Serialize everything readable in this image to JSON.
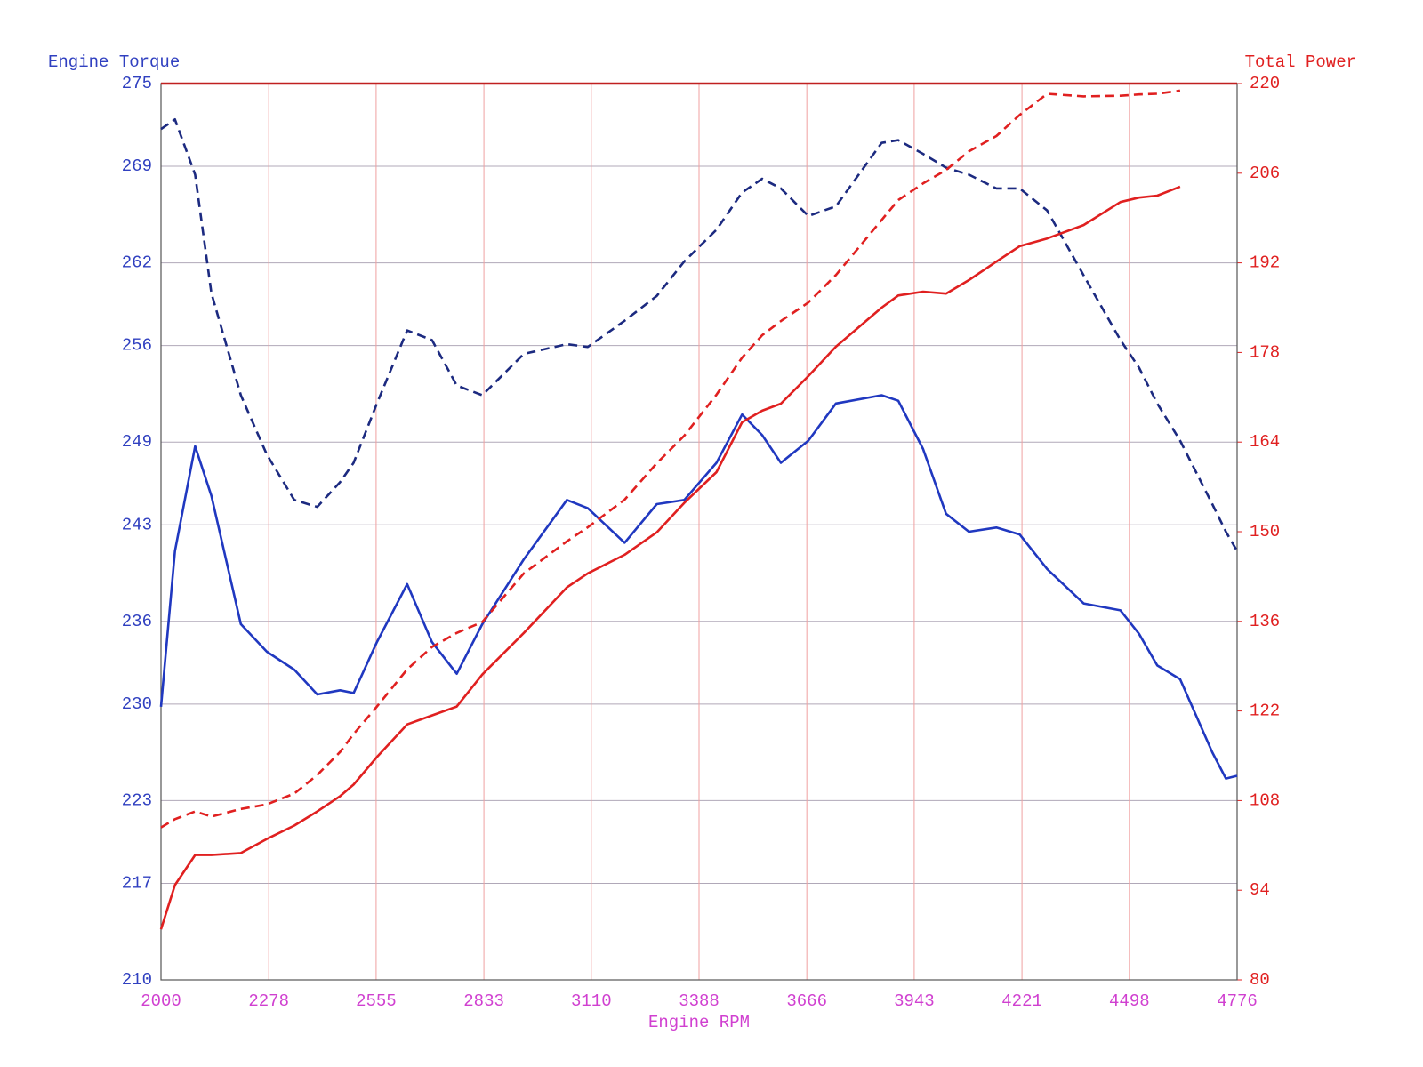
{
  "chart_data": {
    "type": "line",
    "xlabel": "Engine RPM",
    "ylabel": "Engine Torque",
    "y2label": "Total Power",
    "xlim": [
      2000,
      4776
    ],
    "xticks": [
      2000,
      2278,
      2555,
      2833,
      3110,
      3388,
      3666,
      3943,
      4221,
      4498,
      4776
    ],
    "ylim": [
      210,
      275
    ],
    "yticks": [
      210,
      217,
      223,
      230,
      236,
      243,
      249,
      256,
      262,
      269,
      275
    ],
    "y2lim": [
      80,
      220
    ],
    "y2ticks": [
      80,
      94,
      108,
      122,
      136,
      150,
      164,
      178,
      192,
      206,
      220
    ],
    "grid": true,
    "x": [
      2000,
      2036,
      2088,
      2130,
      2206,
      2273,
      2344,
      2403,
      2462,
      2497,
      2557,
      2635,
      2699,
      2763,
      2829,
      2936,
      3047,
      3101,
      3196,
      3279,
      3350,
      3433,
      3499,
      3551,
      3599,
      3670,
      3741,
      3859,
      3902,
      3966,
      4025,
      4084,
      4155,
      4215,
      4286,
      4380,
      4475,
      4523,
      4570,
      4629,
      4712,
      4747,
      4776
    ],
    "series": [
      {
        "color": "#2038c0",
        "line_style": "solid",
        "axis": "y",
        "values": [
          229.8,
          241.1,
          248.7,
          245.1,
          235.8,
          233.8,
          232.5,
          230.7,
          231,
          230.8,
          234.5,
          238.7,
          234.5,
          232.2,
          235.8,
          240.5,
          244.8,
          244.2,
          241.7,
          244.5,
          244.8,
          247.5,
          251,
          249.5,
          247.5,
          249.1,
          251.8,
          252.4,
          252,
          248.5,
          243.8,
          242.5,
          242.8,
          242.3,
          239.8,
          237.3,
          236.8,
          235.1,
          232.8,
          231.8,
          226.5,
          224.6,
          224.8
        ]
      },
      {
        "color": "#1c2a80",
        "line_style": "dashed",
        "axis": "y",
        "values": [
          271.7,
          272.4,
          268.4,
          259.8,
          252.4,
          248.1,
          244.8,
          244.3,
          246.1,
          247.5,
          251.8,
          257.1,
          256.4,
          253.1,
          252.4,
          255.4,
          256.1,
          255.9,
          257.8,
          259.6,
          262.1,
          264.4,
          267.1,
          268.1,
          267.4,
          265.4,
          266.1,
          270.7,
          270.9,
          269.9,
          268.9,
          268.4,
          267.4,
          267.4,
          265.8,
          261.1,
          256.4,
          254.4,
          251.8,
          249.1,
          244.5,
          242.5,
          241.1
        ]
      },
      {
        "color": "#e02020",
        "line_style": "solid",
        "axis": "y2",
        "values": [
          87.9,
          94.8,
          99.5,
          99.5,
          99.8,
          102,
          104.1,
          106.3,
          108.7,
          110.5,
          114.8,
          119.9,
          121.3,
          122.7,
          127.7,
          134.2,
          141.3,
          143.5,
          146.4,
          149.9,
          154.5,
          159.3,
          167.1,
          168.9,
          170,
          174.3,
          178.9,
          185,
          186.9,
          187.5,
          187.2,
          189.3,
          192.2,
          194.6,
          195.8,
          197.9,
          201.5,
          202.2,
          202.5,
          203.9,
          null,
          null,
          null
        ]
      },
      {
        "color": "#e02020",
        "line_style": "dashed",
        "axis": "y2",
        "values": [
          103.8,
          105.1,
          106.3,
          105.5,
          106.7,
          107.4,
          109.1,
          112,
          115.6,
          118.4,
          122.7,
          128.5,
          132,
          134.2,
          135.9,
          143.5,
          148.5,
          150.7,
          155,
          160.7,
          165,
          171.4,
          177.2,
          180.7,
          182.9,
          185.8,
          190.1,
          198.7,
          201.8,
          204.4,
          206.5,
          209.4,
          211.8,
          215.1,
          218.4,
          218,
          218.1,
          218.3,
          218.4,
          218.9,
          null,
          null,
          null
        ]
      }
    ]
  }
}
